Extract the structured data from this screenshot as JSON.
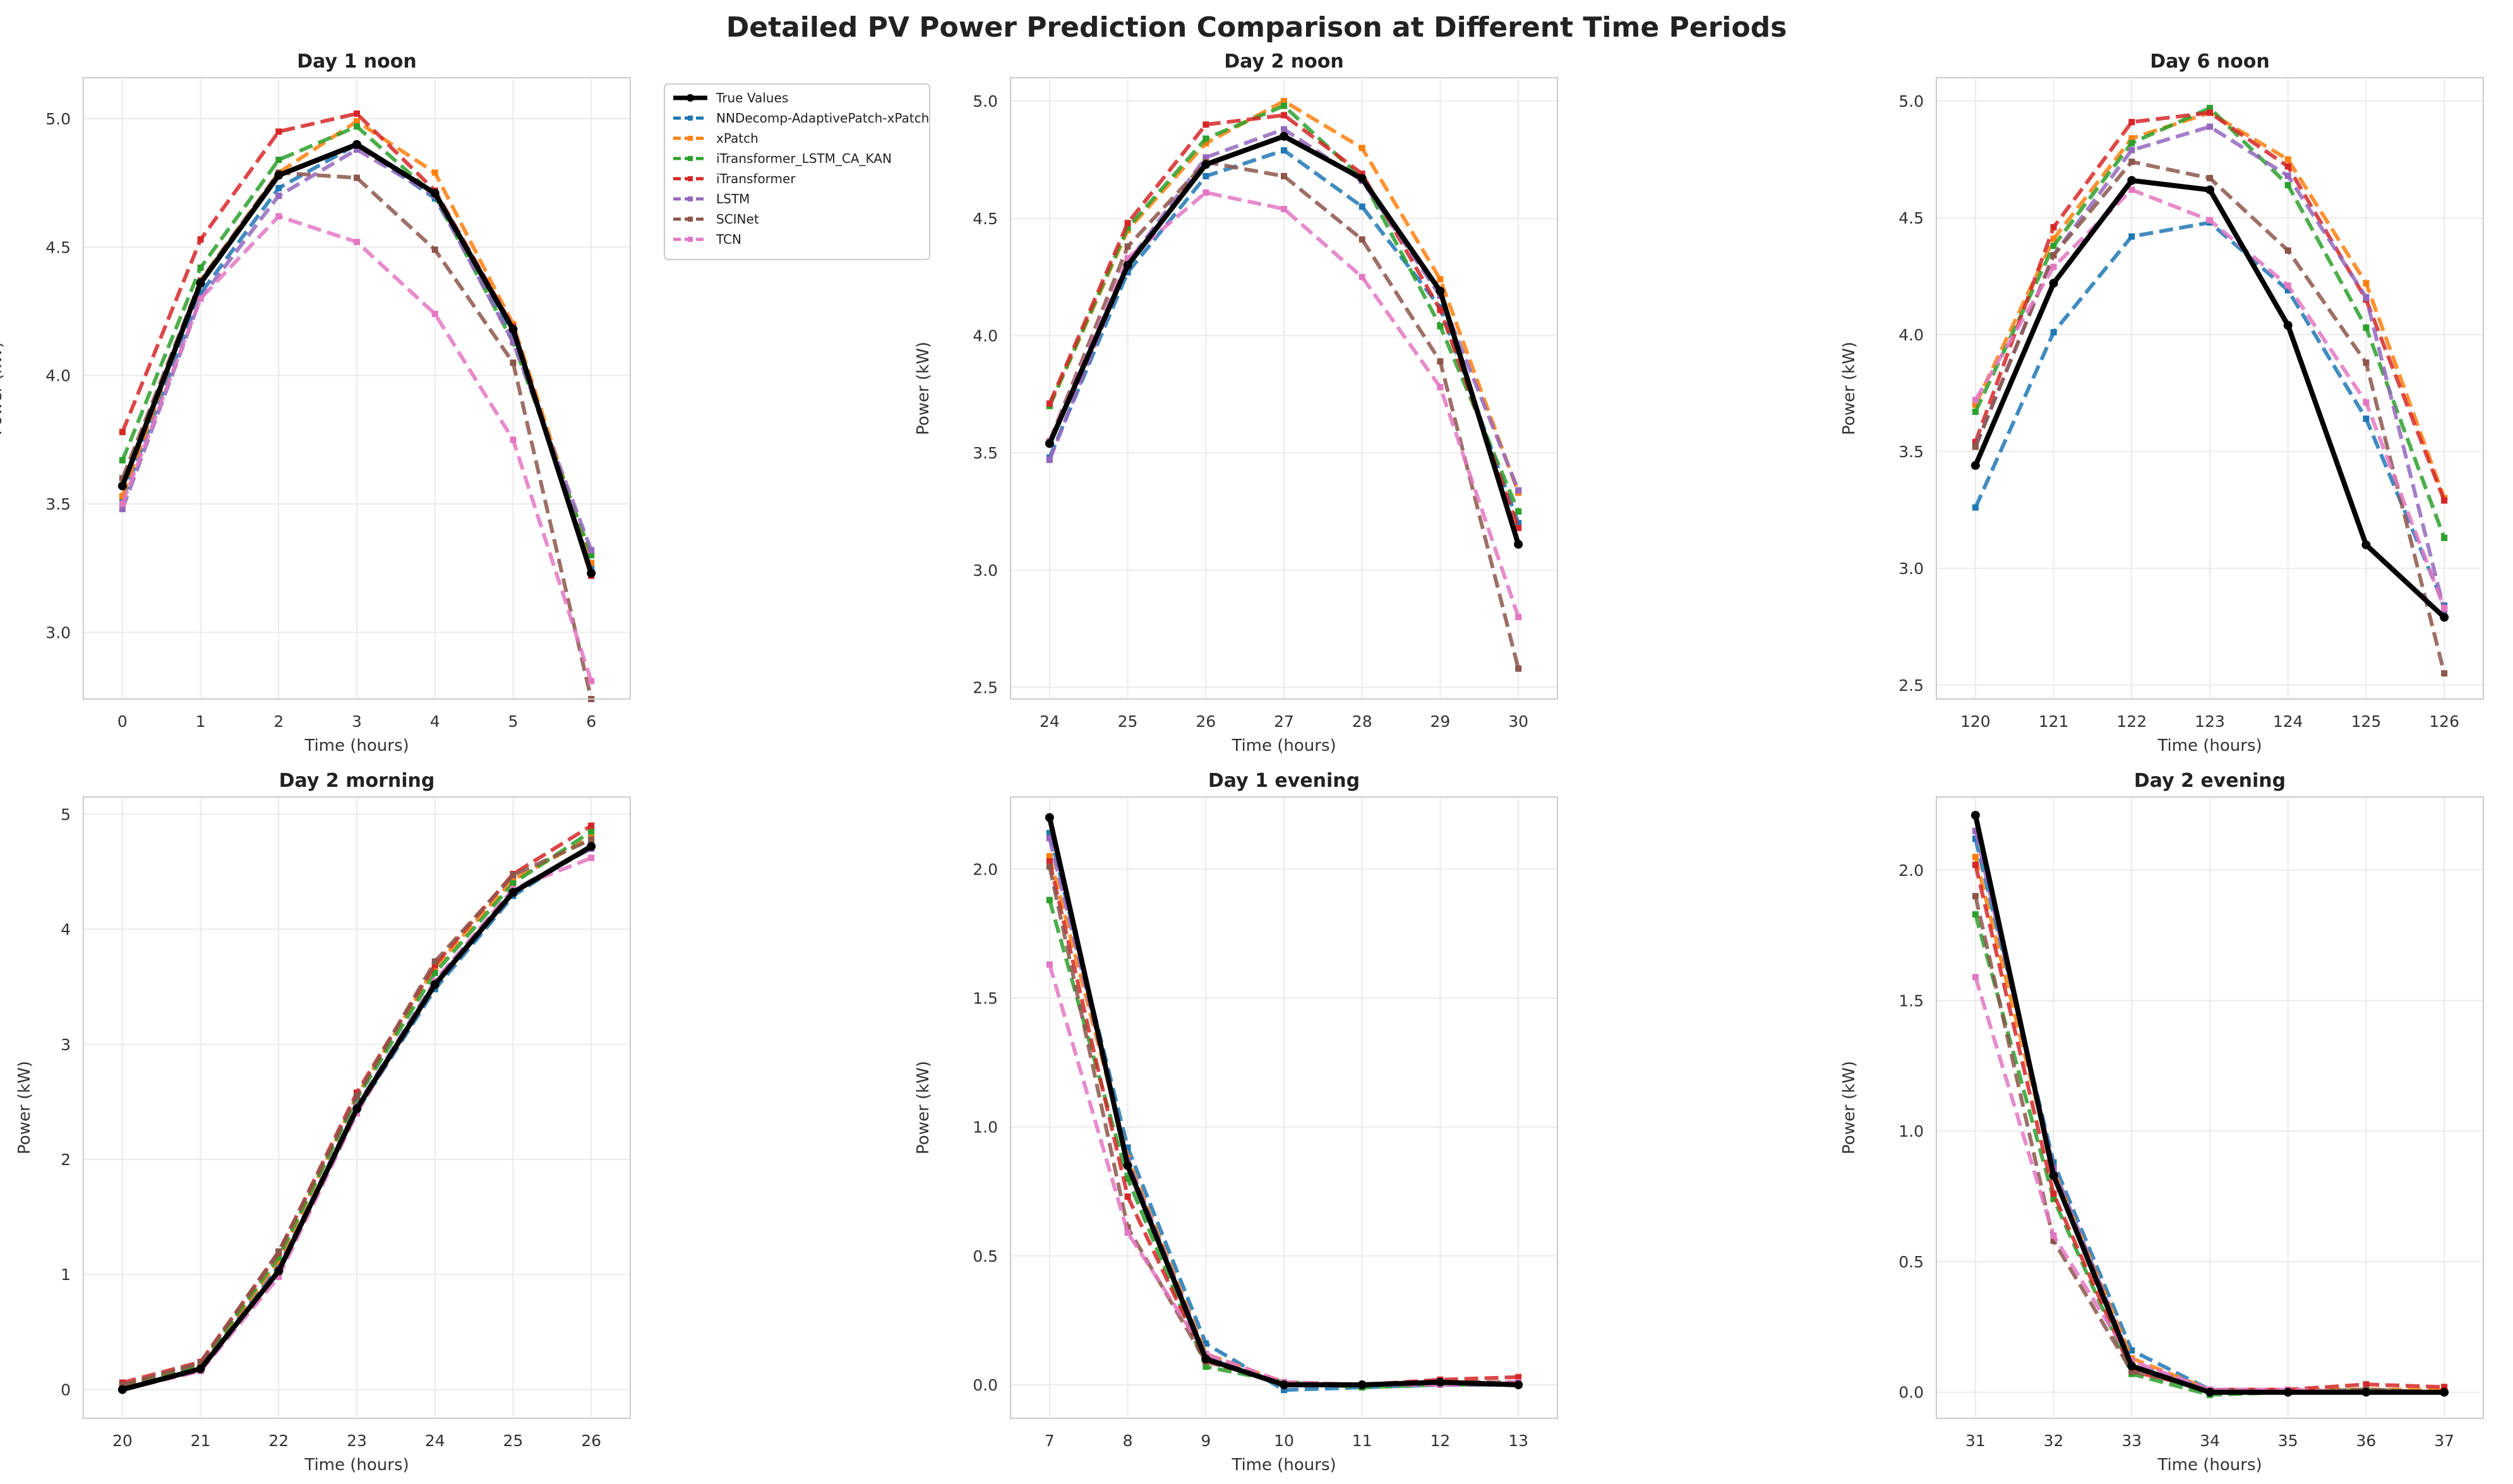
{
  "figure_title": "Detailed PV Power Prediction Comparison at Different Time Periods",
  "legend": [
    {
      "name": "True Values",
      "color": "#000000",
      "style": "solid"
    },
    {
      "name": "NNDecomp-AdaptivePatch-xPatch",
      "color": "#1f77b4",
      "style": "dashed"
    },
    {
      "name": "xPatch",
      "color": "#ff7f0e",
      "style": "dashed"
    },
    {
      "name": "iTransformer_LSTM_CA_KAN",
      "color": "#2ca02c",
      "style": "dashed"
    },
    {
      "name": "iTransformer",
      "color": "#d62728",
      "style": "dashed"
    },
    {
      "name": "LSTM",
      "color": "#9467bd",
      "style": "dashed"
    },
    {
      "name": "SCINet",
      "color": "#8c564b",
      "style": "dashed"
    },
    {
      "name": "TCN",
      "color": "#e377c2",
      "style": "dashed"
    }
  ],
  "chart_data": [
    {
      "type": "line",
      "title": "Day 1 noon",
      "xlabel": "Time (hours)",
      "ylabel": "Power (kW)",
      "x": [
        0,
        1,
        2,
        3,
        4,
        5,
        6
      ],
      "xlim": [
        -0.5,
        6.5
      ],
      "ylim": [
        2.74,
        5.16
      ],
      "yticks": [
        3.0,
        3.5,
        4.0,
        4.5,
        5.0
      ],
      "ytick_labels": [
        "3.0",
        "3.5",
        "4.0",
        "4.5",
        "5.0"
      ],
      "series": [
        {
          "name": "True Values",
          "values": [
            3.57,
            4.36,
            4.78,
            4.9,
            4.71,
            4.18,
            3.23
          ]
        },
        {
          "name": "NNDecomp-AdaptivePatch-xPatch",
          "values": [
            3.52,
            4.32,
            4.73,
            4.9,
            4.69,
            4.16,
            3.25
          ]
        },
        {
          "name": "xPatch",
          "values": [
            3.53,
            4.37,
            4.79,
            4.99,
            4.79,
            4.2,
            3.27
          ]
        },
        {
          "name": "iTransformer_LSTM_CA_KAN",
          "values": [
            3.67,
            4.42,
            4.84,
            4.97,
            4.7,
            4.13,
            3.3
          ]
        },
        {
          "name": "iTransformer",
          "values": [
            3.78,
            4.53,
            4.95,
            5.02,
            4.72,
            4.19,
            3.22
          ]
        },
        {
          "name": "LSTM",
          "values": [
            3.48,
            4.3,
            4.7,
            4.88,
            4.7,
            4.13,
            3.32
          ]
        },
        {
          "name": "SCINet",
          "values": [
            3.6,
            4.37,
            4.79,
            4.77,
            4.49,
            4.05,
            2.74
          ]
        },
        {
          "name": "TCN",
          "values": [
            3.5,
            4.3,
            4.62,
            4.52,
            4.24,
            3.75,
            2.81
          ]
        }
      ]
    },
    {
      "type": "line",
      "title": "Day 2 noon",
      "xlabel": "Time (hours)",
      "ylabel": "Power (kW)",
      "x": [
        24,
        25,
        26,
        27,
        28,
        29,
        30
      ],
      "xlim": [
        23.5,
        30.5
      ],
      "ylim": [
        2.45,
        5.1
      ],
      "yticks": [
        2.5,
        3.0,
        3.5,
        4.0,
        4.5,
        5.0
      ],
      "ytick_labels": [
        "2.5",
        "3.0",
        "3.5",
        "4.0",
        "4.5",
        "5.0"
      ],
      "series": [
        {
          "name": "True Values",
          "values": [
            3.54,
            4.3,
            4.73,
            4.85,
            4.67,
            4.19,
            3.11
          ]
        },
        {
          "name": "NNDecomp-AdaptivePatch-xPatch",
          "values": [
            3.48,
            4.27,
            4.68,
            4.79,
            4.55,
            4.12,
            3.2
          ]
        },
        {
          "name": "xPatch",
          "values": [
            3.7,
            4.45,
            4.82,
            5.0,
            4.8,
            4.24,
            3.33
          ]
        },
        {
          "name": "iTransformer_LSTM_CA_KAN",
          "values": [
            3.7,
            4.46,
            4.84,
            4.98,
            4.67,
            4.04,
            3.25
          ]
        },
        {
          "name": "iTransformer",
          "values": [
            3.71,
            4.48,
            4.9,
            4.94,
            4.69,
            4.11,
            3.18
          ]
        },
        {
          "name": "LSTM",
          "values": [
            3.47,
            4.31,
            4.76,
            4.88,
            4.66,
            4.17,
            3.34
          ]
        },
        {
          "name": "SCINet",
          "values": [
            3.55,
            4.38,
            4.74,
            4.68,
            4.41,
            3.89,
            2.58
          ]
        },
        {
          "name": "TCN",
          "values": [
            3.55,
            4.33,
            4.61,
            4.54,
            4.25,
            3.78,
            2.8
          ]
        }
      ]
    },
    {
      "type": "line",
      "title": "Day 6 noon",
      "xlabel": "Time (hours)",
      "ylabel": "Power (kW)",
      "x": [
        120,
        121,
        122,
        123,
        124,
        125,
        126
      ],
      "xlim": [
        119.5,
        126.5
      ],
      "ylim": [
        2.44,
        5.1
      ],
      "yticks": [
        2.5,
        3.0,
        3.5,
        4.0,
        4.5,
        5.0
      ],
      "ytick_labels": [
        "2.5",
        "3.0",
        "3.5",
        "4.0",
        "4.5",
        "5.0"
      ],
      "series": [
        {
          "name": "True Values",
          "values": [
            3.44,
            4.22,
            4.66,
            4.62,
            4.04,
            3.1,
            2.79
          ]
        },
        {
          "name": "NNDecomp-AdaptivePatch-xPatch",
          "values": [
            3.26,
            4.01,
            4.42,
            4.48,
            4.19,
            3.64,
            2.84
          ]
        },
        {
          "name": "xPatch",
          "values": [
            3.7,
            4.41,
            4.84,
            4.95,
            4.75,
            4.22,
            3.3
          ]
        },
        {
          "name": "iTransformer_LSTM_CA_KAN",
          "values": [
            3.67,
            4.38,
            4.82,
            4.97,
            4.64,
            4.03,
            3.13
          ]
        },
        {
          "name": "iTransformer",
          "values": [
            3.54,
            4.46,
            4.91,
            4.95,
            4.72,
            4.15,
            3.29
          ]
        },
        {
          "name": "LSTM",
          "values": [
            3.52,
            4.34,
            4.79,
            4.89,
            4.68,
            4.16,
            2.82
          ]
        },
        {
          "name": "SCINet",
          "values": [
            3.52,
            4.34,
            4.74,
            4.67,
            4.36,
            3.88,
            2.55
          ]
        },
        {
          "name": "TCN",
          "values": [
            3.72,
            4.29,
            4.62,
            4.49,
            4.21,
            3.71,
            2.83
          ]
        }
      ]
    },
    {
      "type": "line",
      "title": "Day 2 morning",
      "xlabel": "Time (hours)",
      "ylabel": "Power (kW)",
      "x": [
        20,
        21,
        22,
        23,
        24,
        25,
        26
      ],
      "xlim": [
        19.5,
        26.5
      ],
      "ylim": [
        -0.25,
        5.15
      ],
      "yticks": [
        0,
        1,
        2,
        3,
        4,
        5
      ],
      "ytick_labels": [
        "0",
        "1",
        "2",
        "3",
        "4",
        "5"
      ],
      "series": [
        {
          "name": "True Values",
          "values": [
            0.0,
            0.18,
            1.03,
            2.44,
            3.52,
            4.32,
            4.72
          ]
        },
        {
          "name": "NNDecomp-AdaptivePatch-xPatch",
          "values": [
            0.02,
            0.19,
            1.07,
            2.42,
            3.48,
            4.29,
            4.73
          ]
        },
        {
          "name": "xPatch",
          "values": [
            0.03,
            0.21,
            1.12,
            2.55,
            3.67,
            4.43,
            4.8
          ]
        },
        {
          "name": "iTransformer_LSTM_CA_KAN",
          "values": [
            0.03,
            0.22,
            1.15,
            2.53,
            3.62,
            4.4,
            4.85
          ]
        },
        {
          "name": "iTransformer",
          "values": [
            0.06,
            0.24,
            1.19,
            2.58,
            3.69,
            4.48,
            4.9
          ]
        },
        {
          "name": "LSTM",
          "values": [
            0.0,
            0.17,
            1.05,
            2.46,
            3.55,
            4.34,
            4.7
          ]
        },
        {
          "name": "SCINet",
          "values": [
            0.04,
            0.23,
            1.2,
            2.55,
            3.72,
            4.47,
            4.78
          ]
        },
        {
          "name": "TCN",
          "values": [
            0.0,
            0.16,
            0.98,
            2.4,
            3.55,
            4.35,
            4.62
          ]
        }
      ]
    },
    {
      "type": "line",
      "title": "Day 1 evening",
      "xlabel": "Time (hours)",
      "ylabel": "Power (kW)",
      "x": [
        7,
        8,
        9,
        10,
        11,
        12,
        13
      ],
      "xlim": [
        6.5,
        13.5
      ],
      "ylim": [
        -0.13,
        2.28
      ],
      "yticks": [
        0.0,
        0.5,
        1.0,
        1.5,
        2.0
      ],
      "ytick_labels": [
        "0.0",
        "0.5",
        "1.0",
        "1.5",
        "2.0"
      ],
      "series": [
        {
          "name": "True Values",
          "values": [
            2.2,
            0.85,
            0.1,
            0.0,
            0.0,
            0.01,
            0.0
          ]
        },
        {
          "name": "NNDecomp-AdaptivePatch-xPatch",
          "values": [
            2.14,
            0.92,
            0.16,
            -0.02,
            -0.01,
            0.0,
            0.0
          ]
        },
        {
          "name": "xPatch",
          "values": [
            2.05,
            0.88,
            0.12,
            0.01,
            0.0,
            0.01,
            0.0
          ]
        },
        {
          "name": "iTransformer_LSTM_CA_KAN",
          "values": [
            1.88,
            0.8,
            0.07,
            0.01,
            -0.01,
            0.0,
            0.0
          ]
        },
        {
          "name": "iTransformer",
          "values": [
            2.03,
            0.73,
            0.09,
            0.01,
            0.0,
            0.02,
            0.03
          ]
        },
        {
          "name": "LSTM",
          "values": [
            2.12,
            0.87,
            0.11,
            0.0,
            0.0,
            0.0,
            0.0
          ]
        },
        {
          "name": "SCINet",
          "values": [
            2.01,
            0.61,
            0.09,
            0.01,
            0.0,
            0.01,
            0.01
          ]
        },
        {
          "name": "TCN",
          "values": [
            1.63,
            0.59,
            0.12,
            0.01,
            0.0,
            0.0,
            0.01
          ]
        }
      ]
    },
    {
      "type": "line",
      "title": "Day 2 evening",
      "xlabel": "Time (hours)",
      "ylabel": "Power (kW)",
      "x": [
        31,
        32,
        33,
        34,
        35,
        36,
        37
      ],
      "xlim": [
        30.5,
        37.5
      ],
      "ylim": [
        -0.1,
        2.28
      ],
      "yticks": [
        0.0,
        0.5,
        1.0,
        1.5,
        2.0
      ],
      "ytick_labels": [
        "0.0",
        "0.5",
        "1.0",
        "1.5",
        "2.0"
      ],
      "series": [
        {
          "name": "True Values",
          "values": [
            2.21,
            0.83,
            0.1,
            0.0,
            0.0,
            0.0,
            0.0
          ]
        },
        {
          "name": "NNDecomp-AdaptivePatch-xPatch",
          "values": [
            2.12,
            0.88,
            0.16,
            0.01,
            0.0,
            0.01,
            0.0
          ]
        },
        {
          "name": "xPatch",
          "values": [
            2.05,
            0.85,
            0.13,
            0.01,
            0.01,
            0.01,
            0.01
          ]
        },
        {
          "name": "iTransformer_LSTM_CA_KAN",
          "values": [
            1.83,
            0.74,
            0.07,
            -0.01,
            0.0,
            0.01,
            0.0
          ]
        },
        {
          "name": "iTransformer",
          "values": [
            2.02,
            0.76,
            0.08,
            0.01,
            0.01,
            0.03,
            0.02
          ]
        },
        {
          "name": "LSTM",
          "values": [
            2.15,
            0.86,
            0.11,
            0.01,
            0.0,
            0.0,
            0.0
          ]
        },
        {
          "name": "SCINet",
          "values": [
            1.9,
            0.58,
            0.08,
            0.01,
            0.0,
            0.01,
            0.0
          ]
        },
        {
          "name": "TCN",
          "values": [
            1.59,
            0.6,
            0.12,
            0.01,
            0.01,
            0.0,
            0.0
          ]
        }
      ]
    }
  ]
}
